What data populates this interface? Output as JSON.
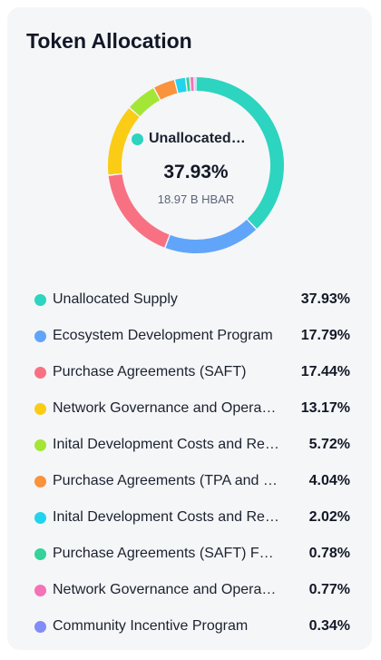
{
  "card": {
    "title": "Token Allocation"
  },
  "center": {
    "name": "Unallocated Supply",
    "percent": "37.93%",
    "amount": "18.97 B HBAR",
    "color": "#2dd4bf"
  },
  "legend": [
    {
      "label": "Unallocated Supply",
      "value": "37.93%",
      "color": "#2dd4bf"
    },
    {
      "label": "Ecosystem Development Program",
      "value": "17.79%",
      "color": "#60a5fa"
    },
    {
      "label": "Purchase Agreements (SAFT)",
      "value": "17.44%",
      "color": "#f87183"
    },
    {
      "label": "Network Governance and Operations",
      "value": "13.17%",
      "color": "#facc15"
    },
    {
      "label": "Inital Development Costs and Reserves",
      "value": "5.72%",
      "color": "#a3e635"
    },
    {
      "label": "Purchase Agreements (TPA and others)",
      "value": "4.04%",
      "color": "#fb923c"
    },
    {
      "label": "Inital Development Costs and Reserves",
      "value": "2.02%",
      "color": "#22d3ee"
    },
    {
      "label": "Purchase Agreements (SAFT) Founders",
      "value": "0.78%",
      "color": "#34d399"
    },
    {
      "label": "Network Governance and Operations",
      "value": "0.77%",
      "color": "#f472b6"
    },
    {
      "label": "Community Incentive Program",
      "value": "0.34%",
      "color": "#818cf8"
    }
  ],
  "chart_data": {
    "type": "pie",
    "categories": [
      "Unallocated Supply",
      "Ecosystem Development Program",
      "Purchase Agreements (SAFT)",
      "Network Governance and Operations",
      "Inital Development Costs and Reserves",
      "Purchase Agreements (TPA and others)",
      "Inital Development Costs and Reserves",
      "Purchase Agreements (SAFT) Founders",
      "Network Governance and Operations",
      "Community Incentive Program"
    ],
    "values": [
      37.93,
      17.79,
      17.44,
      13.17,
      5.72,
      4.04,
      2.02,
      0.78,
      0.77,
      0.34
    ],
    "colors": [
      "#2dd4bf",
      "#60a5fa",
      "#f87183",
      "#facc15",
      "#a3e635",
      "#fb923c",
      "#22d3ee",
      "#34d399",
      "#f472b6",
      "#818cf8"
    ],
    "title": "Token Allocation",
    "legend_position": "bottom",
    "style": "donut"
  }
}
